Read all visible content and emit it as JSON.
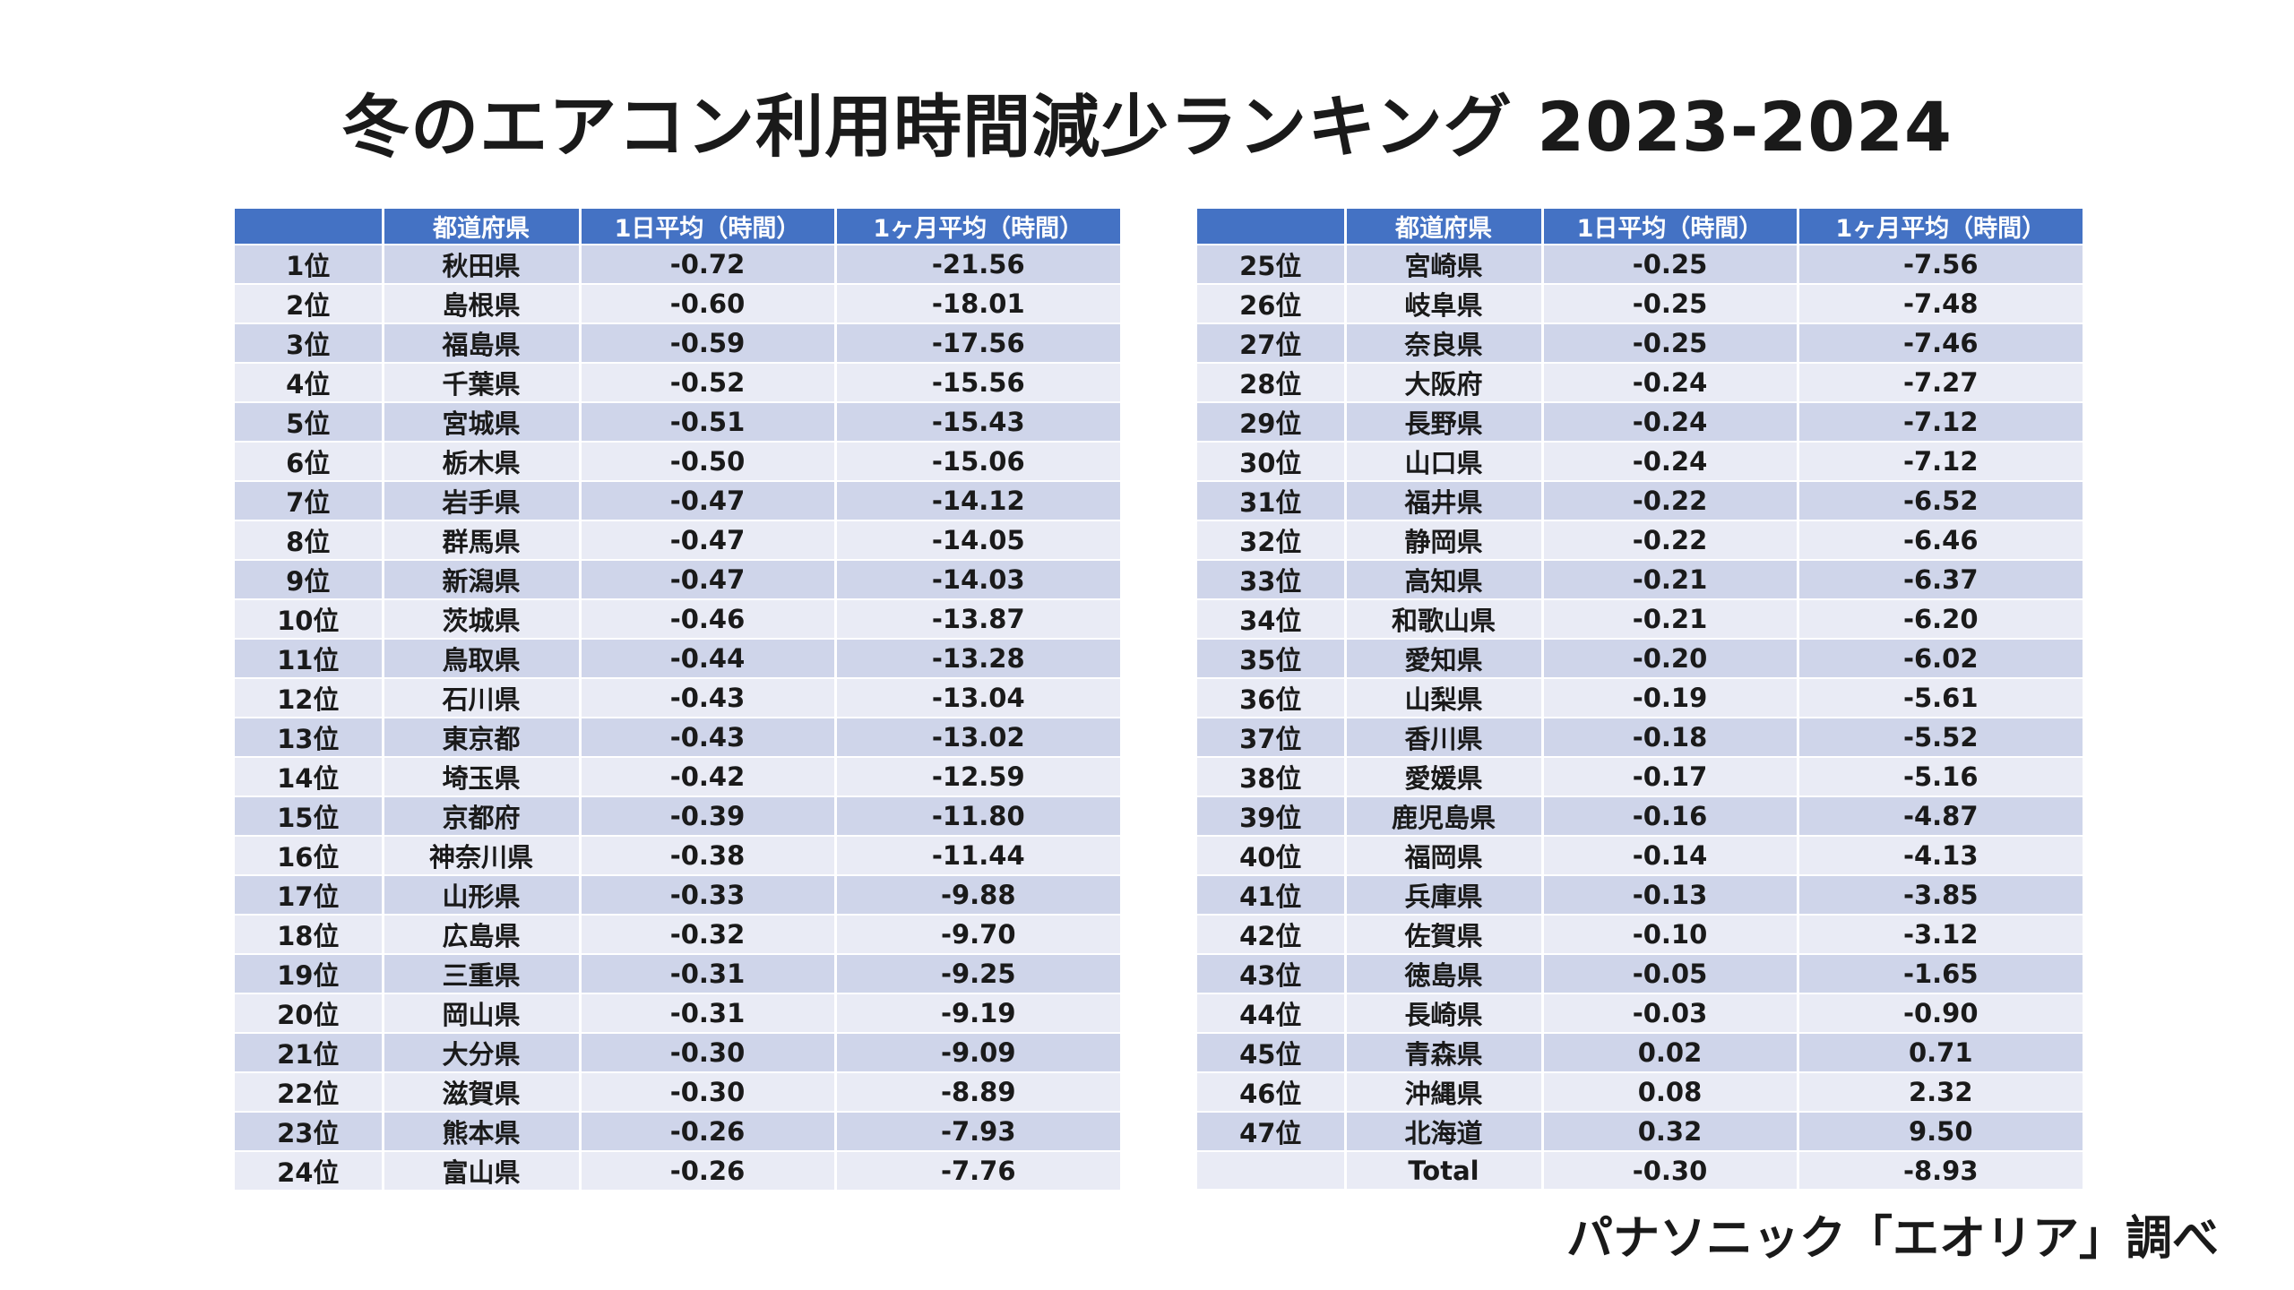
{
  "title": "冬のエアコン利用時間減少ランキング  2023-2024",
  "credit": "パナソニック「エオリア」調べ",
  "columns": {
    "rank": "",
    "prefecture": "都道府県",
    "daily_avg": "1日平均（時間）",
    "monthly_avg": "1ヶ月平均（時間）"
  },
  "table_left": [
    {
      "rank": "1位",
      "pref": "秋田県",
      "day": "-0.72",
      "month": "-21.56"
    },
    {
      "rank": "2位",
      "pref": "島根県",
      "day": "-0.60",
      "month": "-18.01"
    },
    {
      "rank": "3位",
      "pref": "福島県",
      "day": "-0.59",
      "month": "-17.56"
    },
    {
      "rank": "4位",
      "pref": "千葉県",
      "day": "-0.52",
      "month": "-15.56"
    },
    {
      "rank": "5位",
      "pref": "宮城県",
      "day": "-0.51",
      "month": "-15.43"
    },
    {
      "rank": "6位",
      "pref": "栃木県",
      "day": "-0.50",
      "month": "-15.06"
    },
    {
      "rank": "7位",
      "pref": "岩手県",
      "day": "-0.47",
      "month": "-14.12"
    },
    {
      "rank": "8位",
      "pref": "群馬県",
      "day": "-0.47",
      "month": "-14.05"
    },
    {
      "rank": "9位",
      "pref": "新潟県",
      "day": "-0.47",
      "month": "-14.03"
    },
    {
      "rank": "10位",
      "pref": "茨城県",
      "day": "-0.46",
      "month": "-13.87"
    },
    {
      "rank": "11位",
      "pref": "鳥取県",
      "day": "-0.44",
      "month": "-13.28"
    },
    {
      "rank": "12位",
      "pref": "石川県",
      "day": "-0.43",
      "month": "-13.04"
    },
    {
      "rank": "13位",
      "pref": "東京都",
      "day": "-0.43",
      "month": "-13.02"
    },
    {
      "rank": "14位",
      "pref": "埼玉県",
      "day": "-0.42",
      "month": "-12.59"
    },
    {
      "rank": "15位",
      "pref": "京都府",
      "day": "-0.39",
      "month": "-11.80"
    },
    {
      "rank": "16位",
      "pref": "神奈川県",
      "day": "-0.38",
      "month": "-11.44"
    },
    {
      "rank": "17位",
      "pref": "山形県",
      "day": "-0.33",
      "month": "-9.88"
    },
    {
      "rank": "18位",
      "pref": "広島県",
      "day": "-0.32",
      "month": "-9.70"
    },
    {
      "rank": "19位",
      "pref": "三重県",
      "day": "-0.31",
      "month": "-9.25"
    },
    {
      "rank": "20位",
      "pref": "岡山県",
      "day": "-0.31",
      "month": "-9.19"
    },
    {
      "rank": "21位",
      "pref": "大分県",
      "day": "-0.30",
      "month": "-9.09"
    },
    {
      "rank": "22位",
      "pref": "滋賀県",
      "day": "-0.30",
      "month": "-8.89"
    },
    {
      "rank": "23位",
      "pref": "熊本県",
      "day": "-0.26",
      "month": "-7.93"
    },
    {
      "rank": "24位",
      "pref": "富山県",
      "day": "-0.26",
      "month": "-7.76"
    }
  ],
  "table_right": [
    {
      "rank": "25位",
      "pref": "宮崎県",
      "day": "-0.25",
      "month": "-7.56"
    },
    {
      "rank": "26位",
      "pref": "岐阜県",
      "day": "-0.25",
      "month": "-7.48"
    },
    {
      "rank": "27位",
      "pref": "奈良県",
      "day": "-0.25",
      "month": "-7.46"
    },
    {
      "rank": "28位",
      "pref": "大阪府",
      "day": "-0.24",
      "month": "-7.27"
    },
    {
      "rank": "29位",
      "pref": "長野県",
      "day": "-0.24",
      "month": "-7.12"
    },
    {
      "rank": "30位",
      "pref": "山口県",
      "day": "-0.24",
      "month": "-7.12"
    },
    {
      "rank": "31位",
      "pref": "福井県",
      "day": "-0.22",
      "month": "-6.52"
    },
    {
      "rank": "32位",
      "pref": "静岡県",
      "day": "-0.22",
      "month": "-6.46"
    },
    {
      "rank": "33位",
      "pref": "高知県",
      "day": "-0.21",
      "month": "-6.37"
    },
    {
      "rank": "34位",
      "pref": "和歌山県",
      "day": "-0.21",
      "month": "-6.20"
    },
    {
      "rank": "35位",
      "pref": "愛知県",
      "day": "-0.20",
      "month": "-6.02"
    },
    {
      "rank": "36位",
      "pref": "山梨県",
      "day": "-0.19",
      "month": "-5.61"
    },
    {
      "rank": "37位",
      "pref": "香川県",
      "day": "-0.18",
      "month": "-5.52"
    },
    {
      "rank": "38位",
      "pref": "愛媛県",
      "day": "-0.17",
      "month": "-5.16"
    },
    {
      "rank": "39位",
      "pref": "鹿児島県",
      "day": "-0.16",
      "month": "-4.87"
    },
    {
      "rank": "40位",
      "pref": "福岡県",
      "day": "-0.14",
      "month": "-4.13"
    },
    {
      "rank": "41位",
      "pref": "兵庫県",
      "day": "-0.13",
      "month": "-3.85"
    },
    {
      "rank": "42位",
      "pref": "佐賀県",
      "day": "-0.10",
      "month": "-3.12"
    },
    {
      "rank": "43位",
      "pref": "徳島県",
      "day": "-0.05",
      "month": "-1.65"
    },
    {
      "rank": "44位",
      "pref": "長崎県",
      "day": "-0.03",
      "month": "-0.90"
    },
    {
      "rank": "45位",
      "pref": "青森県",
      "day": "0.02",
      "month": "0.71"
    },
    {
      "rank": "46位",
      "pref": "沖縄県",
      "day": "0.08",
      "month": "2.32"
    },
    {
      "rank": "47位",
      "pref": "北海道",
      "day": "0.32",
      "month": "9.50"
    },
    {
      "rank": "",
      "pref": "Total",
      "day": "-0.30",
      "month": "-8.93"
    }
  ]
}
